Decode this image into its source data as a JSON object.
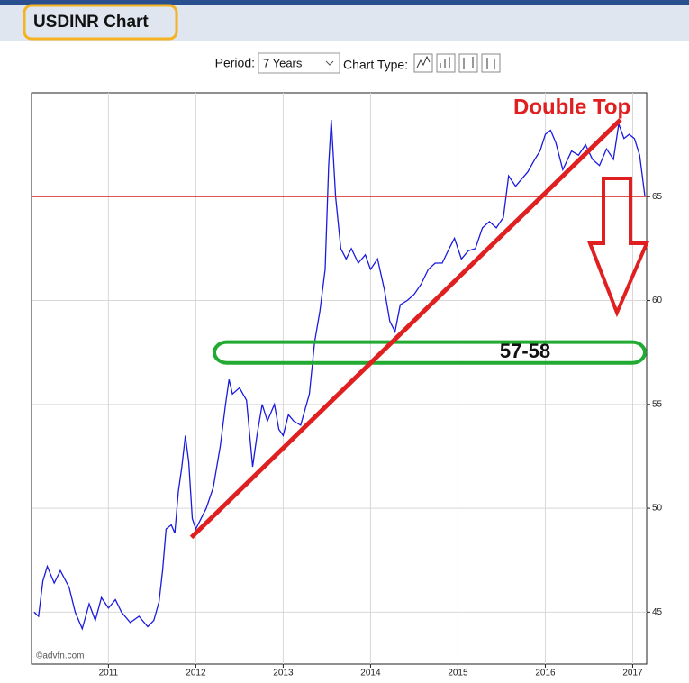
{
  "header": {
    "title": "USDINR Chart",
    "period_label": "Period:",
    "period_value": "7 Years",
    "chart_type_label": "Chart Type:"
  },
  "chart_data": {
    "type": "line",
    "color": "#1a1adf",
    "grid": true,
    "x": [
      2010.15,
      2010.2,
      2010.25,
      2010.3,
      2010.38,
      2010.45,
      2010.55,
      2010.62,
      2010.7,
      2010.78,
      2010.85,
      2010.92,
      2011.0,
      2011.08,
      2011.15,
      2011.25,
      2011.35,
      2011.45,
      2011.52,
      2011.58,
      2011.62,
      2011.66,
      2011.72,
      2011.76,
      2011.8,
      2011.84,
      2011.88,
      2011.92,
      2011.96,
      2012.0,
      2012.06,
      2012.12,
      2012.2,
      2012.28,
      2012.34,
      2012.38,
      2012.42,
      2012.5,
      2012.58,
      2012.65,
      2012.7,
      2012.76,
      2012.82,
      2012.9,
      2012.95,
      2013.0,
      2013.06,
      2013.12,
      2013.2,
      2013.3,
      2013.36,
      2013.42,
      2013.48,
      2013.52,
      2013.55,
      2013.6,
      2013.66,
      2013.72,
      2013.78,
      2013.86,
      2013.94,
      2014.0,
      2014.08,
      2014.16,
      2014.22,
      2014.28,
      2014.34,
      2014.42,
      2014.5,
      2014.58,
      2014.66,
      2014.74,
      2014.82,
      2014.9,
      2014.96,
      2015.04,
      2015.12,
      2015.2,
      2015.28,
      2015.36,
      2015.44,
      2015.52,
      2015.58,
      2015.66,
      2015.72,
      2015.8,
      2015.88,
      2015.94,
      2016.0,
      2016.06,
      2016.12,
      2016.2,
      2016.3,
      2016.38,
      2016.46,
      2016.54,
      2016.62,
      2016.7,
      2016.78,
      2016.84,
      2016.9,
      2016.96,
      2017.02,
      2017.08,
      2017.14
    ],
    "values": [
      45,
      44.8,
      46.5,
      47.2,
      46.4,
      47,
      46.2,
      45,
      44.2,
      45.4,
      44.6,
      45.7,
      45.2,
      45.6,
      45,
      44.5,
      44.8,
      44.3,
      44.6,
      45.5,
      47,
      49,
      49.2,
      48.8,
      50.8,
      52,
      53.5,
      52.2,
      49.5,
      49,
      49.5,
      50,
      51,
      53,
      55,
      56.2,
      55.5,
      55.8,
      55.2,
      52,
      53.5,
      55,
      54.2,
      55,
      53.8,
      53.5,
      54.5,
      54.2,
      54,
      55.5,
      58,
      59.5,
      61.5,
      66.5,
      68.7,
      65,
      62.5,
      62,
      62.5,
      61.8,
      62.2,
      61.5,
      62,
      60.5,
      59,
      58.5,
      59.8,
      60,
      60.3,
      60.8,
      61.5,
      61.8,
      61.8,
      62.5,
      63,
      62,
      62.4,
      62.5,
      63.5,
      63.8,
      63.5,
      64,
      66,
      65.5,
      65.8,
      66.2,
      66.8,
      67.2,
      68,
      68.2,
      67.6,
      66.3,
      67.2,
      67,
      67.5,
      66.8,
      66.5,
      67.3,
      66.8,
      68.5,
      67.8,
      68,
      67.8,
      67,
      65
    ],
    "xlim": [
      2010.12,
      2017.16
    ],
    "ylim": [
      42.5,
      70
    ],
    "xticks": [
      2011,
      2012,
      2013,
      2014,
      2015,
      2016,
      2017
    ],
    "yticks": [
      45,
      50,
      55,
      60,
      65
    ],
    "hline": 65,
    "trendline": {
      "x": [
        2011.95,
        2016.86
      ],
      "y": [
        48.6,
        68.7
      ]
    },
    "zone": {
      "ylim": [
        57,
        58
      ],
      "label": "57-58"
    },
    "annotation": "Double Top",
    "source": "©advfn.com"
  }
}
